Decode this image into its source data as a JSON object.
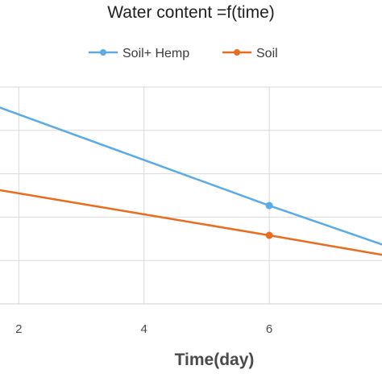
{
  "chart_data": {
    "type": "line",
    "title": "Water content =f(time)",
    "xlabel": "Time(day)",
    "ylabel": "",
    "xlim": [
      1.7,
      7.8
    ],
    "ylim": [
      0,
      1
    ],
    "x_ticks": [
      2,
      4,
      6
    ],
    "x_tick_labels": [
      "2",
      "4",
      "6"
    ],
    "grid": true,
    "legend_position": "top",
    "series": [
      {
        "name": "Soil+ Hemp",
        "color": "#5aabe6",
        "x": [
          1.7,
          6,
          7.8
        ],
        "y": [
          0.905,
          0.453,
          0.274
        ],
        "marker_x": [
          6
        ],
        "marker_y": [
          0.453
        ]
      },
      {
        "name": "Soil",
        "color": "#ea6c1f",
        "x": [
          1.7,
          6,
          7.8
        ],
        "y": [
          0.524,
          0.316,
          0.226
        ],
        "marker_x": [
          6
        ],
        "marker_y": [
          0.316
        ]
      }
    ]
  }
}
